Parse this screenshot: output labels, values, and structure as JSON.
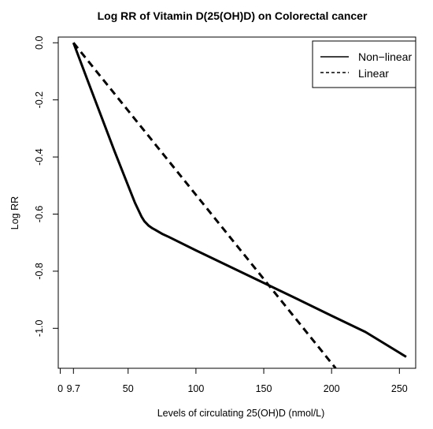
{
  "chart_data": {
    "type": "line",
    "title": "Log RR of Vitamin D(25(OH)D) on Colorectal cancer",
    "xlabel": "Levels of circulating 25(OH)D (nmol/L)",
    "ylabel": "Log RR",
    "xlim": [
      -1.5,
      262
    ],
    "ylim": [
      -1.14,
      0.02
    ],
    "x_ticks": [
      0,
      9.7,
      50,
      100,
      150,
      200,
      250
    ],
    "x_tick_labels": [
      "0",
      "9.7",
      "50",
      "100",
      "150",
      "200",
      "250"
    ],
    "y_ticks": [
      0.0,
      -0.2,
      -0.4,
      -0.6,
      -0.8,
      -1.0
    ],
    "y_tick_labels": [
      "0.0",
      "-0.2",
      "-0.4",
      "-0.6",
      "-0.8",
      "-1.0"
    ],
    "grid": false,
    "legend": {
      "placement": "top-right",
      "entries": [
        {
          "label": "Non−linear",
          "style": "solid"
        },
        {
          "label": "Linear",
          "style": "dashed"
        }
      ]
    },
    "series": [
      {
        "name": "Non−linear",
        "style": "solid",
        "x": [
          9.7,
          20,
          30,
          40,
          50,
          55,
          60,
          62,
          65,
          68,
          70,
          75,
          80,
          100,
          125,
          150,
          175,
          200,
          225,
          255
        ],
        "y": [
          0.0,
          -0.13,
          -0.255,
          -0.38,
          -0.5,
          -0.56,
          -0.61,
          -0.625,
          -0.64,
          -0.65,
          -0.655,
          -0.669,
          -0.68,
          -0.727,
          -0.784,
          -0.841,
          -0.898,
          -0.956,
          -1.013,
          -1.1
        ]
      },
      {
        "name": "Linear",
        "style": "dashed",
        "x": [
          9.7,
          203
        ],
        "y": [
          0.0,
          -1.14
        ]
      }
    ]
  }
}
